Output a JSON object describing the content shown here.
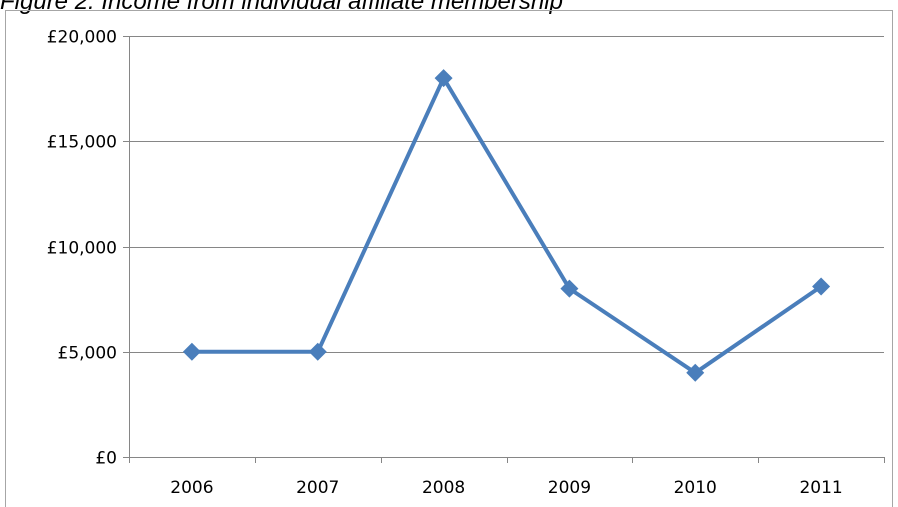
{
  "figure_title": "Figure 2: Income from individual affiliate membership",
  "chart_data": {
    "type": "line",
    "categories": [
      "2006",
      "2007",
      "2008",
      "2009",
      "2010",
      "2011"
    ],
    "series": [
      {
        "values": [
          5000,
          5000,
          18000,
          8000,
          4000,
          8100
        ]
      }
    ],
    "ylim": [
      0,
      20000
    ],
    "yticks": [
      0,
      5000,
      10000,
      15000,
      20000
    ],
    "ytick_labels": [
      "£0",
      "£5,000",
      "£10,000",
      "£15,000",
      "£20,000"
    ],
    "grid": true,
    "legend": "none",
    "series_color": "#4a7ebb",
    "grid_color": "#868686"
  }
}
